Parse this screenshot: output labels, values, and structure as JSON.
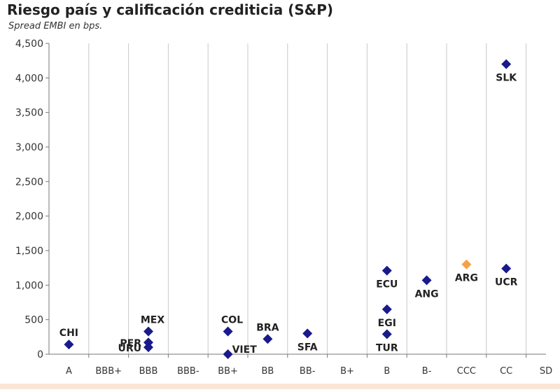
{
  "title": "Riesgo país y calificación crediticia (S&P)",
  "subtitle": "Spread EMBI en bps.",
  "chart_data": {
    "type": "scatter",
    "title": "Riesgo país y calificación crediticia (S&P)",
    "subtitle": "Spread EMBI en bps.",
    "xlabel": "",
    "ylabel": "",
    "categories": [
      "A",
      "BBB+",
      "BBB",
      "BBB-",
      "BB+",
      "BB",
      "BB-",
      "B+",
      "B",
      "B-",
      "CCC",
      "CC",
      "SD"
    ],
    "ylim": [
      0,
      4500
    ],
    "yticks": [
      0,
      500,
      1000,
      1500,
      2000,
      2500,
      3000,
      3500,
      4000,
      4500
    ],
    "ytick_labels": [
      "0",
      "500",
      "1,000",
      "1,500",
      "2,000",
      "2,500",
      "3,000",
      "3,500",
      "4,000",
      "4,500"
    ],
    "grid": "vertical",
    "points": [
      {
        "label": "CHI",
        "x": "A",
        "y": 140,
        "color": "#1a1a8c",
        "label_pos": "above"
      },
      {
        "label": "MEX",
        "x": "BBB",
        "y": 330,
        "color": "#1a1a8c",
        "label_pos": "above-right"
      },
      {
        "label": "PER",
        "x": "BBB",
        "y": 170,
        "color": "#1a1a8c",
        "label_pos": "left"
      },
      {
        "label": "URU",
        "x": "BBB",
        "y": 100,
        "color": "#1a1a8c",
        "label_pos": "left"
      },
      {
        "label": "COL",
        "x": "BB+",
        "y": 330,
        "color": "#1a1a8c",
        "label_pos": "above-right"
      },
      {
        "label": "VIET",
        "x": "BB+",
        "y": 0,
        "color": "#1a1a8c",
        "label_pos": "right"
      },
      {
        "label": "BRA",
        "x": "BB",
        "y": 220,
        "color": "#1a1a8c",
        "label_pos": "above"
      },
      {
        "label": "SFA",
        "x": "BB-",
        "y": 300,
        "color": "#1a1a8c",
        "label_pos": "below"
      },
      {
        "label": "ECU",
        "x": "B",
        "y": 1210,
        "color": "#1a1a8c",
        "label_pos": "below"
      },
      {
        "label": "EGI",
        "x": "B",
        "y": 650,
        "color": "#1a1a8c",
        "label_pos": "below"
      },
      {
        "label": "TUR",
        "x": "B",
        "y": 290,
        "color": "#1a1a8c",
        "label_pos": "below"
      },
      {
        "label": "ANG",
        "x": "B-",
        "y": 1070,
        "color": "#1a1a8c",
        "label_pos": "below"
      },
      {
        "label": "ARG",
        "x": "CCC",
        "y": 1300,
        "color": "#f4a24a",
        "label_pos": "below"
      },
      {
        "label": "SLK",
        "x": "CC",
        "y": 4200,
        "color": "#1a1a8c",
        "label_pos": "below"
      },
      {
        "label": "UCR",
        "x": "CC",
        "y": 1240,
        "color": "#1a1a8c",
        "label_pos": "below"
      }
    ]
  }
}
